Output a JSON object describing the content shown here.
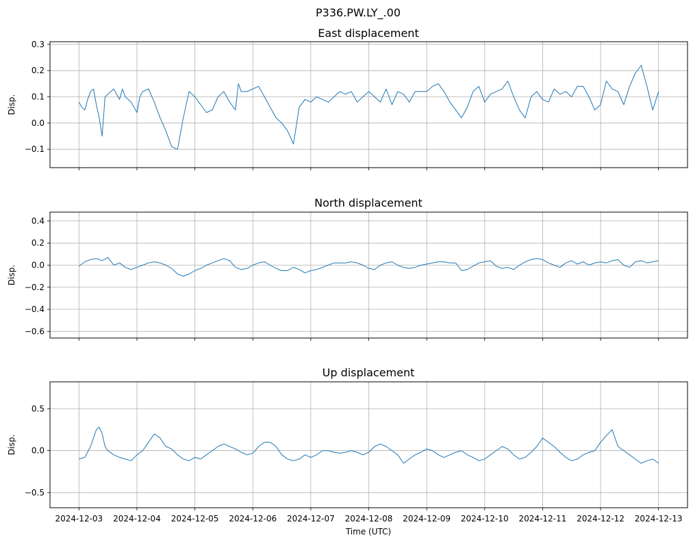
{
  "figure": {
    "suptitle": "P336.PW.LY_.00",
    "xlabel": "Time (UTC)"
  },
  "line_color": "#1f77b4",
  "chart_data": [
    {
      "type": "line",
      "title": "East displacement",
      "ylabel": "Disp.",
      "xlabel": "",
      "grid": true,
      "ylim": [
        -0.17,
        0.31
      ],
      "yticks": [
        -0.1,
        0.0,
        0.1,
        0.2,
        0.3
      ],
      "ytick_labels": [
        "−0.1",
        "0.0",
        "0.1",
        "0.2",
        "0.3"
      ],
      "x_date_start": "2024-12-03",
      "xlim_days": [
        -0.5,
        10.5
      ],
      "series": [
        {
          "name": "East",
          "x": [
            0.0,
            0.05,
            0.1,
            0.15,
            0.2,
            0.25,
            0.3,
            0.35,
            0.4,
            0.45,
            0.5,
            0.55,
            0.6,
            0.65,
            0.7,
            0.75,
            0.8,
            0.9,
            1.0,
            1.05,
            1.1,
            1.2,
            1.3,
            1.4,
            1.5,
            1.6,
            1.7,
            1.8,
            1.9,
            2.0,
            2.1,
            2.2,
            2.3,
            2.4,
            2.5,
            2.6,
            2.7,
            2.75,
            2.8,
            2.9,
            3.0,
            3.1,
            3.2,
            3.3,
            3.4,
            3.5,
            3.6,
            3.7,
            3.8,
            3.9,
            4.0,
            4.1,
            4.2,
            4.3,
            4.4,
            4.5,
            4.6,
            4.7,
            4.8,
            4.9,
            5.0,
            5.1,
            5.2,
            5.3,
            5.4,
            5.5,
            5.6,
            5.7,
            5.8,
            5.9,
            6.0,
            6.1,
            6.2,
            6.3,
            6.4,
            6.5,
            6.6,
            6.7,
            6.8,
            6.9,
            7.0,
            7.1,
            7.2,
            7.3,
            7.4,
            7.5,
            7.6,
            7.7,
            7.8,
            7.9,
            8.0,
            8.1,
            8.2,
            8.3,
            8.4,
            8.5,
            8.6,
            8.7,
            8.8,
            8.9,
            9.0,
            9.1,
            9.2,
            9.3,
            9.4,
            9.5,
            9.6,
            9.7,
            9.8,
            9.9,
            10.0
          ],
          "y": [
            0.08,
            0.06,
            0.05,
            0.09,
            0.12,
            0.13,
            0.07,
            0.02,
            -0.05,
            0.1,
            0.11,
            0.12,
            0.13,
            0.11,
            0.09,
            0.13,
            0.1,
            0.08,
            0.04,
            0.1,
            0.12,
            0.13,
            0.08,
            0.02,
            -0.03,
            -0.09,
            -0.1,
            0.02,
            0.12,
            0.1,
            0.07,
            0.04,
            0.05,
            0.1,
            0.12,
            0.08,
            0.05,
            0.15,
            0.12,
            0.12,
            0.13,
            0.14,
            0.1,
            0.06,
            0.02,
            0.0,
            -0.03,
            -0.08,
            0.06,
            0.09,
            0.08,
            0.1,
            0.09,
            0.08,
            0.1,
            0.12,
            0.11,
            0.12,
            0.08,
            0.1,
            0.12,
            0.1,
            0.08,
            0.13,
            0.07,
            0.12,
            0.11,
            0.08,
            0.12,
            0.12,
            0.12,
            0.14,
            0.15,
            0.12,
            0.08,
            0.05,
            0.02,
            0.06,
            0.12,
            0.14,
            0.08,
            0.11,
            0.12,
            0.13,
            0.16,
            0.1,
            0.05,
            0.02,
            0.1,
            0.12,
            0.09,
            0.08,
            0.13,
            0.11,
            0.12,
            0.1,
            0.14,
            0.14,
            0.1,
            0.05,
            0.07,
            0.16,
            0.13,
            0.12,
            0.07,
            0.14,
            0.19,
            0.22,
            0.14,
            0.05,
            0.12
          ]
        }
      ]
    },
    {
      "type": "line",
      "title": "North displacement",
      "ylabel": "Disp.",
      "xlabel": "",
      "grid": true,
      "ylim": [
        -0.66,
        0.48
      ],
      "yticks": [
        -0.6,
        -0.4,
        -0.2,
        0.0,
        0.2,
        0.4
      ],
      "ytick_labels": [
        "−0.6",
        "−0.4",
        "−0.2",
        "0.0",
        "0.2",
        "0.4"
      ],
      "x_date_start": "2024-12-03",
      "xlim_days": [
        -0.5,
        10.5
      ],
      "series": [
        {
          "name": "North",
          "x": [
            0.0,
            0.1,
            0.2,
            0.3,
            0.4,
            0.5,
            0.6,
            0.7,
            0.8,
            0.9,
            1.0,
            1.1,
            1.2,
            1.3,
            1.4,
            1.5,
            1.6,
            1.7,
            1.8,
            1.9,
            2.0,
            2.1,
            2.2,
            2.3,
            2.4,
            2.5,
            2.6,
            2.7,
            2.8,
            2.9,
            3.0,
            3.1,
            3.2,
            3.3,
            3.4,
            3.5,
            3.6,
            3.7,
            3.8,
            3.9,
            4.0,
            4.1,
            4.2,
            4.3,
            4.4,
            4.5,
            4.6,
            4.7,
            4.8,
            4.9,
            5.0,
            5.1,
            5.2,
            5.3,
            5.4,
            5.5,
            5.6,
            5.7,
            5.8,
            5.9,
            6.0,
            6.1,
            6.2,
            6.3,
            6.4,
            6.5,
            6.6,
            6.7,
            6.8,
            6.9,
            7.0,
            7.1,
            7.2,
            7.3,
            7.4,
            7.5,
            7.6,
            7.7,
            7.8,
            7.9,
            8.0,
            8.1,
            8.2,
            8.3,
            8.4,
            8.5,
            8.6,
            8.7,
            8.8,
            8.9,
            9.0,
            9.1,
            9.2,
            9.3,
            9.4,
            9.5,
            9.6,
            9.7,
            9.8,
            9.9,
            10.0
          ],
          "y": [
            -0.01,
            0.03,
            0.05,
            0.06,
            0.04,
            0.07,
            0.0,
            0.02,
            -0.02,
            -0.04,
            -0.02,
            0.0,
            0.02,
            0.03,
            0.02,
            0.0,
            -0.03,
            -0.08,
            -0.1,
            -0.08,
            -0.05,
            -0.03,
            0.0,
            0.02,
            0.04,
            0.06,
            0.04,
            -0.02,
            -0.04,
            -0.03,
            0.0,
            0.02,
            0.03,
            0.0,
            -0.03,
            -0.05,
            -0.05,
            -0.02,
            -0.04,
            -0.07,
            -0.05,
            -0.04,
            -0.02,
            0.0,
            0.02,
            0.02,
            0.02,
            0.03,
            0.02,
            0.0,
            -0.03,
            -0.04,
            0.0,
            0.02,
            0.03,
            0.0,
            -0.02,
            -0.03,
            -0.02,
            0.0,
            0.01,
            0.02,
            0.03,
            0.03,
            0.02,
            0.02,
            -0.05,
            -0.04,
            -0.01,
            0.02,
            0.03,
            0.04,
            -0.01,
            -0.03,
            -0.02,
            -0.04,
            0.0,
            0.03,
            0.05,
            0.06,
            0.05,
            0.02,
            0.0,
            -0.02,
            0.02,
            0.04,
            0.01,
            0.03,
            0.0,
            0.02,
            0.03,
            0.02,
            0.04,
            0.05,
            0.0,
            -0.02,
            0.03,
            0.04,
            0.02,
            0.03,
            0.04
          ]
        }
      ]
    },
    {
      "type": "line",
      "title": "Up displacement",
      "ylabel": "Disp.",
      "xlabel": "Time (UTC)",
      "grid": true,
      "ylim": [
        -0.68,
        0.82
      ],
      "yticks": [
        -0.5,
        0.0,
        0.5
      ],
      "ytick_labels": [
        "−0.5",
        "0.0",
        "0.5"
      ],
      "x_date_start": "2024-12-03",
      "xlim_days": [
        -0.5,
        10.5
      ],
      "xticks_days": [
        0,
        1,
        2,
        3,
        4,
        5,
        6,
        7,
        8,
        9,
        10
      ],
      "xtick_labels": [
        "2024-12-03",
        "2024-12-04",
        "2024-12-05",
        "2024-12-06",
        "2024-12-07",
        "2024-12-08",
        "2024-12-09",
        "2024-12-10",
        "2024-12-11",
        "2024-12-12",
        "2024-12-13"
      ],
      "series": [
        {
          "name": "Up",
          "x": [
            0.0,
            0.1,
            0.2,
            0.25,
            0.3,
            0.35,
            0.4,
            0.45,
            0.5,
            0.6,
            0.7,
            0.8,
            0.9,
            1.0,
            1.1,
            1.2,
            1.3,
            1.4,
            1.5,
            1.6,
            1.7,
            1.8,
            1.9,
            2.0,
            2.1,
            2.2,
            2.3,
            2.4,
            2.5,
            2.6,
            2.7,
            2.8,
            2.9,
            3.0,
            3.1,
            3.2,
            3.3,
            3.4,
            3.5,
            3.6,
            3.7,
            3.8,
            3.9,
            4.0,
            4.1,
            4.2,
            4.3,
            4.4,
            4.5,
            4.6,
            4.7,
            4.8,
            4.9,
            5.0,
            5.1,
            5.2,
            5.3,
            5.4,
            5.5,
            5.6,
            5.7,
            5.8,
            5.9,
            6.0,
            6.1,
            6.2,
            6.3,
            6.4,
            6.5,
            6.6,
            6.7,
            6.8,
            6.9,
            7.0,
            7.1,
            7.2,
            7.3,
            7.4,
            7.5,
            7.6,
            7.7,
            7.8,
            7.9,
            8.0,
            8.1,
            8.2,
            8.3,
            8.4,
            8.5,
            8.6,
            8.7,
            8.8,
            8.9,
            9.0,
            9.1,
            9.2,
            9.3,
            9.4,
            9.5,
            9.6,
            9.7,
            9.8,
            9.9,
            10.0
          ],
          "y": [
            -0.1,
            -0.08,
            0.05,
            0.15,
            0.25,
            0.28,
            0.2,
            0.05,
            0.0,
            -0.05,
            -0.08,
            -0.1,
            -0.12,
            -0.05,
            0.0,
            0.1,
            0.2,
            0.15,
            0.05,
            0.02,
            -0.05,
            -0.1,
            -0.12,
            -0.08,
            -0.1,
            -0.05,
            0.0,
            0.05,
            0.08,
            0.05,
            0.02,
            -0.02,
            -0.05,
            -0.03,
            0.05,
            0.1,
            0.1,
            0.05,
            -0.05,
            -0.1,
            -0.12,
            -0.1,
            -0.05,
            -0.08,
            -0.05,
            0.0,
            0.0,
            -0.02,
            -0.03,
            -0.02,
            0.0,
            -0.02,
            -0.05,
            -0.02,
            0.05,
            0.08,
            0.05,
            0.0,
            -0.05,
            -0.15,
            -0.1,
            -0.05,
            -0.02,
            0.02,
            0.0,
            -0.05,
            -0.08,
            -0.05,
            -0.02,
            0.0,
            -0.05,
            -0.08,
            -0.12,
            -0.1,
            -0.05,
            0.0,
            0.05,
            0.02,
            -0.05,
            -0.1,
            -0.08,
            -0.02,
            0.05,
            0.15,
            0.1,
            0.05,
            -0.02,
            -0.08,
            -0.12,
            -0.1,
            -0.05,
            -0.02,
            0.0,
            0.1,
            0.18,
            0.25,
            0.05,
            0.0,
            -0.05,
            -0.1,
            -0.15,
            -0.12,
            -0.1,
            -0.15
          ]
        }
      ]
    }
  ]
}
